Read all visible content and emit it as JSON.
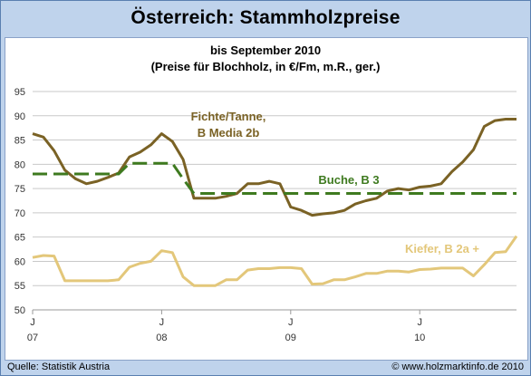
{
  "title": "Österreich: Stammholzpreise",
  "footer": {
    "source": "Quelle: Statistik Austria",
    "copyright": "© www.holzmarktinfo.de 2010"
  },
  "chart_data": {
    "type": "line",
    "title": "bis September 2010",
    "subtitle": "(Preise für Blochholz, in €/Fm, m.R., ger.)",
    "ylim": [
      50,
      95
    ],
    "yticks": [
      50,
      55,
      60,
      65,
      70,
      75,
      80,
      85,
      90,
      95
    ],
    "xlim": [
      0,
      45
    ],
    "xticks": [
      {
        "x": 0,
        "label": "J",
        "year": "07"
      },
      {
        "x": 12,
        "label": "J",
        "year": "08"
      },
      {
        "x": 24,
        "label": "J",
        "year": "09"
      },
      {
        "x": 36,
        "label": "J",
        "year": "10"
      }
    ],
    "grid": true,
    "series": [
      {
        "name": "Fichte/Tanne, B Media 2b",
        "label_lines": [
          "Fichte/Tanne,",
          "B Media 2b"
        ],
        "color": "#7a6225",
        "style": "solid",
        "x": [
          0,
          1,
          2,
          3,
          4,
          5,
          6,
          7,
          8,
          9,
          10,
          11,
          12,
          13,
          14,
          15,
          16,
          17,
          18,
          19,
          20,
          21,
          22,
          23,
          24,
          25,
          26,
          27,
          28,
          29,
          30,
          31,
          32,
          33,
          34,
          35,
          36,
          37,
          38,
          39,
          40,
          41,
          42,
          43,
          44,
          45
        ],
        "values": [
          86.3,
          85.6,
          82.8,
          78.8,
          77.0,
          76.0,
          76.5,
          77.3,
          78.2,
          81.5,
          82.5,
          84.0,
          86.3,
          84.7,
          81.0,
          73.0,
          73.0,
          73.0,
          73.4,
          74.0,
          76.0,
          76.0,
          76.5,
          76.0,
          71.2,
          70.5,
          69.5,
          69.8,
          70.0,
          70.5,
          71.8,
          72.5,
          73.0,
          74.5,
          75.0,
          74.7,
          75.3,
          75.5,
          76.0,
          78.5,
          80.5,
          83.0,
          87.8,
          89.0,
          89.3,
          89.3
        ]
      },
      {
        "name": "Buche, B 3",
        "color": "#3e7a1f",
        "style": "dashed",
        "x": [
          0,
          1,
          2,
          3,
          4,
          5,
          6,
          7,
          8,
          9,
          10,
          11,
          12,
          13,
          14,
          15,
          16,
          17,
          18,
          19,
          20,
          21,
          22,
          23,
          24,
          25,
          26,
          27,
          28,
          29,
          30,
          31,
          32,
          33,
          34,
          35,
          36,
          37,
          38,
          39,
          40,
          41,
          42,
          43,
          44,
          45
        ],
        "values": [
          78.0,
          78.0,
          78.0,
          78.0,
          78.0,
          78.0,
          78.0,
          78.0,
          78.0,
          80.2,
          80.2,
          80.2,
          80.2,
          80.2,
          77.0,
          74.0,
          74.0,
          74.0,
          74.0,
          74.0,
          74.0,
          74.0,
          74.0,
          74.0,
          74.0,
          74.0,
          74.0,
          74.0,
          74.0,
          74.0,
          74.0,
          74.0,
          74.0,
          74.0,
          74.0,
          74.0,
          74.0,
          74.0,
          74.0,
          74.0,
          74.0,
          74.0,
          74.0,
          74.0,
          74.0,
          74.0
        ]
      },
      {
        "name": "Kiefer, B 2a +",
        "color": "#e3c77a",
        "style": "solid",
        "x": [
          0,
          1,
          2,
          3,
          4,
          5,
          6,
          7,
          8,
          9,
          10,
          11,
          12,
          13,
          14,
          15,
          16,
          17,
          18,
          19,
          20,
          21,
          22,
          23,
          24,
          25,
          26,
          27,
          28,
          29,
          30,
          31,
          32,
          33,
          34,
          35,
          36,
          37,
          38,
          39,
          40,
          41,
          42,
          43,
          44,
          45
        ],
        "values": [
          60.8,
          61.2,
          61.1,
          56.0,
          56.0,
          56.0,
          56.0,
          56.0,
          56.2,
          58.8,
          59.6,
          60.0,
          62.2,
          61.8,
          56.8,
          55.0,
          55.0,
          55.0,
          56.2,
          56.2,
          58.2,
          58.5,
          58.5,
          58.7,
          58.7,
          58.5,
          55.3,
          55.4,
          56.2,
          56.2,
          56.8,
          57.5,
          57.5,
          58.0,
          58.0,
          57.8,
          58.3,
          58.4,
          58.6,
          58.6,
          58.6,
          57.0,
          59.3,
          61.8,
          62.0,
          65.2
        ]
      }
    ]
  }
}
